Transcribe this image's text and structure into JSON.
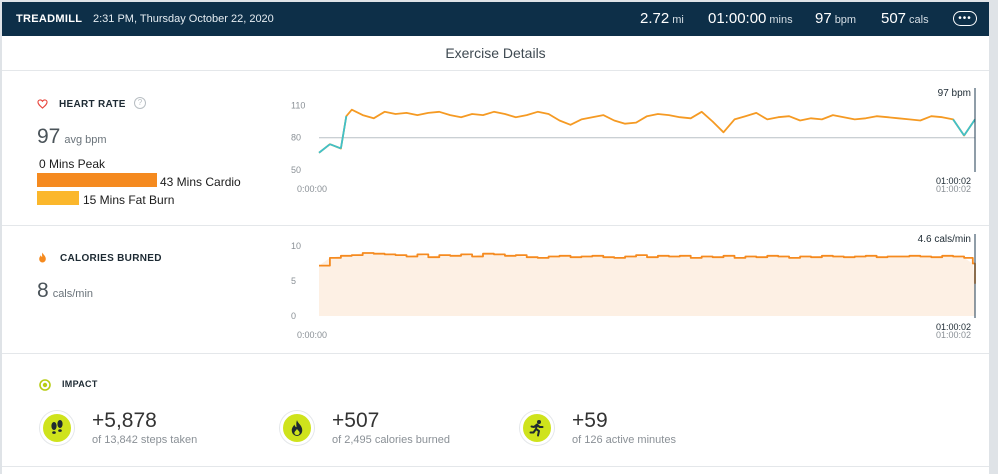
{
  "header": {
    "exercise_type": "TREADMILL",
    "datetime": "2:31 PM, Thursday October 22, 2020",
    "stats": [
      {
        "value": "2.72",
        "unit": "mi"
      },
      {
        "value": "01:00:00",
        "unit": "mins"
      },
      {
        "value": "97",
        "unit": "bpm"
      },
      {
        "value": "507",
        "unit": "cals"
      }
    ],
    "more_icon": "ellipsis-icon"
  },
  "page_title": "Exercise Details",
  "heart_rate": {
    "label": "HEART RATE",
    "avg_value": "97",
    "avg_unit": "avg bpm",
    "zones": [
      {
        "label": "0 Mins Peak",
        "minutes": 0,
        "color": "#e8453c"
      },
      {
        "label": "43 Mins Cardio",
        "minutes": 43,
        "color": "#f58a1f"
      },
      {
        "label": "15 Mins Fat Burn",
        "minutes": 15,
        "color": "#fbb72c"
      }
    ],
    "colors": {
      "line": "#f59a23",
      "low": "#3fc1c9",
      "ref": "#b9c0c6"
    }
  },
  "calories": {
    "label": "CALORIES BURNED",
    "value": "8",
    "unit": "cals/min",
    "colors": {
      "line": "#f58a1f",
      "fill": "#fdf0e4",
      "ref": "#f6d3b3"
    }
  },
  "chart_data": [
    {
      "type": "line",
      "xlabel": "",
      "ylabel": "",
      "yticks": [
        "110",
        "80",
        "50"
      ],
      "ylim": [
        50,
        115
      ],
      "xlim": [
        0,
        60
      ],
      "x_tick_labels": [
        "0:00:00",
        "01:00:02"
      ],
      "reference_line": 80,
      "current_label": "97 bpm",
      "current_time": "01:00:02",
      "x": [
        0,
        1,
        2,
        2.5,
        3,
        4,
        5,
        6,
        7,
        8,
        9,
        10,
        11,
        12,
        13,
        14,
        15,
        16,
        17,
        18,
        19,
        20,
        21,
        22,
        23,
        24,
        25,
        26,
        27,
        28,
        29,
        30,
        31,
        32,
        33,
        34,
        35,
        36,
        37,
        38,
        39,
        40,
        41,
        42,
        43,
        44,
        45,
        46,
        47,
        48,
        49,
        50,
        51,
        52,
        53,
        54,
        55,
        56,
        57,
        58,
        59,
        60
      ],
      "y": [
        66,
        74,
        70,
        100,
        106,
        101,
        98,
        104,
        102,
        103,
        101,
        103,
        104,
        101,
        99,
        102,
        101,
        104,
        102,
        99,
        101,
        104,
        102,
        96,
        92,
        97,
        99,
        101,
        96,
        93,
        94,
        100,
        102,
        101,
        99,
        98,
        104,
        95,
        85,
        97,
        100,
        103,
        97,
        99,
        100,
        96,
        98,
        97,
        101,
        99,
        97,
        98,
        100,
        99,
        98,
        97,
        96,
        100,
        99,
        97,
        82,
        97
      ]
    },
    {
      "type": "area",
      "xlabel": "",
      "ylabel": "",
      "yticks": [
        "10",
        "5",
        "0"
      ],
      "ylim": [
        0,
        10
      ],
      "xlim": [
        0,
        60
      ],
      "x_tick_labels": [
        "0:00:00",
        "01:00:02"
      ],
      "reference_line": 5,
      "current_label": "4.6 cals/min",
      "current_time": "01:00:02",
      "x": [
        0,
        1,
        2,
        3,
        4,
        5,
        6,
        7,
        8,
        9,
        10,
        11,
        12,
        13,
        14,
        15,
        16,
        17,
        18,
        19,
        20,
        21,
        22,
        23,
        24,
        25,
        26,
        27,
        28,
        29,
        30,
        31,
        32,
        33,
        34,
        35,
        36,
        37,
        38,
        39,
        40,
        41,
        42,
        43,
        44,
        45,
        46,
        47,
        48,
        49,
        50,
        51,
        52,
        53,
        54,
        55,
        56,
        57,
        58,
        59,
        59.8,
        60
      ],
      "y": [
        7.2,
        8.3,
        8.6,
        8.7,
        9.0,
        8.9,
        8.8,
        8.7,
        8.5,
        8.8,
        8.4,
        8.7,
        8.6,
        8.8,
        8.5,
        8.9,
        8.8,
        8.6,
        8.7,
        8.4,
        8.3,
        8.5,
        8.6,
        8.4,
        8.5,
        8.6,
        8.4,
        8.3,
        8.5,
        8.7,
        8.4,
        8.6,
        8.5,
        8.6,
        8.3,
        8.5,
        8.4,
        8.6,
        8.3,
        8.5,
        8.4,
        8.6,
        8.5,
        8.3,
        8.5,
        8.4,
        8.6,
        8.5,
        8.4,
        8.5,
        8.6,
        8.4,
        8.5,
        8.5,
        8.6,
        8.5,
        8.4,
        8.6,
        8.5,
        8.3,
        7.5,
        4.6
      ]
    }
  ],
  "impact": {
    "label": "IMPACT",
    "items": [
      {
        "value": "+5,878",
        "sub": "of 13,842 steps taken",
        "icon": "footprints-icon"
      },
      {
        "value": "+507",
        "sub": "of 2,495 calories burned",
        "icon": "flame-icon"
      },
      {
        "value": "+59",
        "sub": "of 126 active minutes",
        "icon": "runner-icon"
      }
    ],
    "accent": "#cfe31c"
  }
}
